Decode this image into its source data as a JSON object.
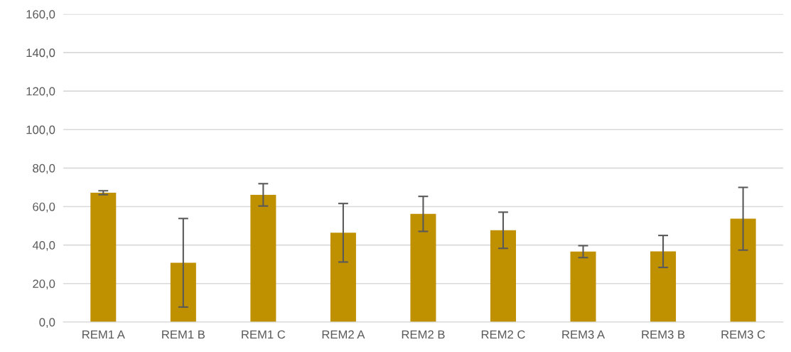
{
  "chart_data": {
    "type": "bar",
    "categories": [
      "REM1 A",
      "REM1 B",
      "REM1 C",
      "REM2 A",
      "REM2 B",
      "REM2 C",
      "REM3 A",
      "REM3 B",
      "REM3 C"
    ],
    "values": [
      67.2,
      30.8,
      66.1,
      46.4,
      56.2,
      47.7,
      36.6,
      36.7,
      53.7
    ],
    "errors": [
      1.0,
      23.0,
      5.8,
      15.2,
      9.1,
      9.4,
      3.1,
      8.3,
      16.3
    ],
    "color": "#bf9000",
    "ylim": [
      0,
      160
    ],
    "yticks": [
      {
        "value": 0,
        "label": "0,0"
      },
      {
        "value": 20,
        "label": "20,0"
      },
      {
        "value": 40,
        "label": "40,0"
      },
      {
        "value": 60,
        "label": "60,0"
      },
      {
        "value": 80,
        "label": "80,0"
      },
      {
        "value": 100,
        "label": "100,0"
      },
      {
        "value": 120,
        "label": "120,0"
      },
      {
        "value": 140,
        "label": "140,0"
      },
      {
        "value": 160,
        "label": "160,0"
      }
    ],
    "grid": "y"
  }
}
